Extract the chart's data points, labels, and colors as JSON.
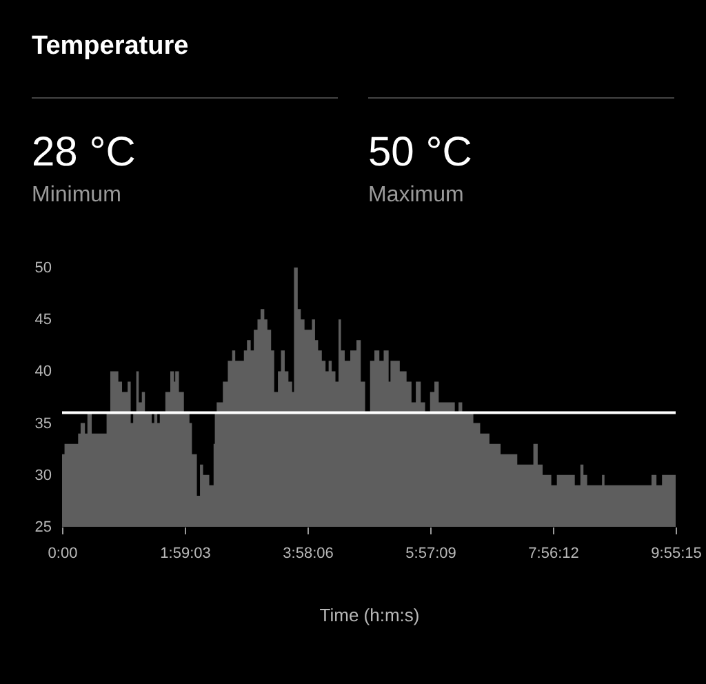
{
  "chart_data": {
    "type": "area",
    "title": "Temperature",
    "xlabel": "Time (h:m:s)",
    "annotations": [
      "28 °C",
      "Minimum",
      "50 °C",
      "Maximum"
    ],
    "x": [
      0,
      0.04,
      0.26,
      0.3,
      0.37,
      0.41,
      0.48,
      0.72,
      0.78,
      0.85,
      0.91,
      0.97,
      1.04,
      1.06,
      1.11,
      1.15,
      1.2,
      1.24,
      1.29,
      1.34,
      1.45,
      1.49,
      1.54,
      1.58,
      1.67,
      1.75,
      1.81,
      1.83,
      1.89,
      1.97,
      2.06,
      2.1,
      2.18,
      2.23,
      2.28,
      2.33,
      2.38,
      2.45,
      2.47,
      2.5,
      2.6,
      2.68,
      2.75,
      2.8,
      2.94,
      2.99,
      3.05,
      3.1,
      3.16,
      3.21,
      3.27,
      3.32,
      3.38,
      3.43,
      3.49,
      3.54,
      3.6,
      3.66,
      3.72,
      3.75,
      3.81,
      3.86,
      3.92,
      4.04,
      4.09,
      4.14,
      4.2,
      4.26,
      4.31,
      4.36,
      4.42,
      4.47,
      4.51,
      4.57,
      4.66,
      4.76,
      4.83,
      4.9,
      4.98,
      5.05,
      5.13,
      5.2,
      5.28,
      5.31,
      5.46,
      5.57,
      5.65,
      5.72,
      5.8,
      5.87,
      5.95,
      6.02,
      6.09,
      6.35,
      6.41,
      6.47,
      6.65,
      6.76,
      6.91,
      7.09,
      7.36,
      7.62,
      7.69,
      7.77,
      7.91,
      8.0,
      8.29,
      8.38,
      8.43,
      8.49,
      8.73,
      8.77,
      9.53,
      9.61,
      9.7,
      9.9208
    ],
    "series": [
      {
        "color": "#5e5e5e",
        "values": [
          32,
          33,
          34,
          35,
          34,
          36,
          34,
          36,
          40,
          40,
          39,
          38,
          38,
          39,
          35,
          36,
          40,
          37,
          38,
          36,
          35,
          36,
          35,
          36,
          38,
          40,
          39,
          40,
          38,
          36,
          35,
          32,
          28,
          31,
          30,
          30,
          29,
          33,
          36,
          37,
          39,
          41,
          42,
          41,
          42,
          43,
          42,
          44,
          45,
          46,
          45,
          44,
          42,
          38,
          40,
          42,
          40,
          39,
          38,
          50,
          46,
          45,
          44,
          45,
          43,
          42,
          41,
          40,
          41,
          40,
          39,
          45,
          42,
          41,
          42,
          43,
          39,
          36,
          41,
          42,
          41,
          42,
          39,
          41,
          40,
          39,
          37,
          39,
          37,
          36,
          38,
          39,
          37,
          36,
          37,
          36,
          35,
          34,
          33,
          32,
          31,
          33,
          31,
          30,
          29,
          30,
          29,
          31,
          30,
          29,
          30,
          29,
          30,
          29,
          30,
          30
        ]
      }
    ],
    "xlim": [
      0,
      9.9208
    ],
    "xticks": [
      {
        "value": 0,
        "label": "0:00"
      },
      {
        "value": 1.9842,
        "label": "1:59:03"
      },
      {
        "value": 3.9683,
        "label": "3:58:06"
      },
      {
        "value": 5.9525,
        "label": "5:57:09"
      },
      {
        "value": 7.9367,
        "label": "7:56:12"
      },
      {
        "value": 9.9208,
        "label": "9:55:15"
      }
    ],
    "ylim": [
      25,
      50
    ],
    "yticks": [
      25,
      30,
      35,
      40,
      45,
      50
    ],
    "ref_lines": [
      {
        "axis": "y",
        "value": 36,
        "color": "#ffffff"
      }
    ],
    "grid": false
  }
}
